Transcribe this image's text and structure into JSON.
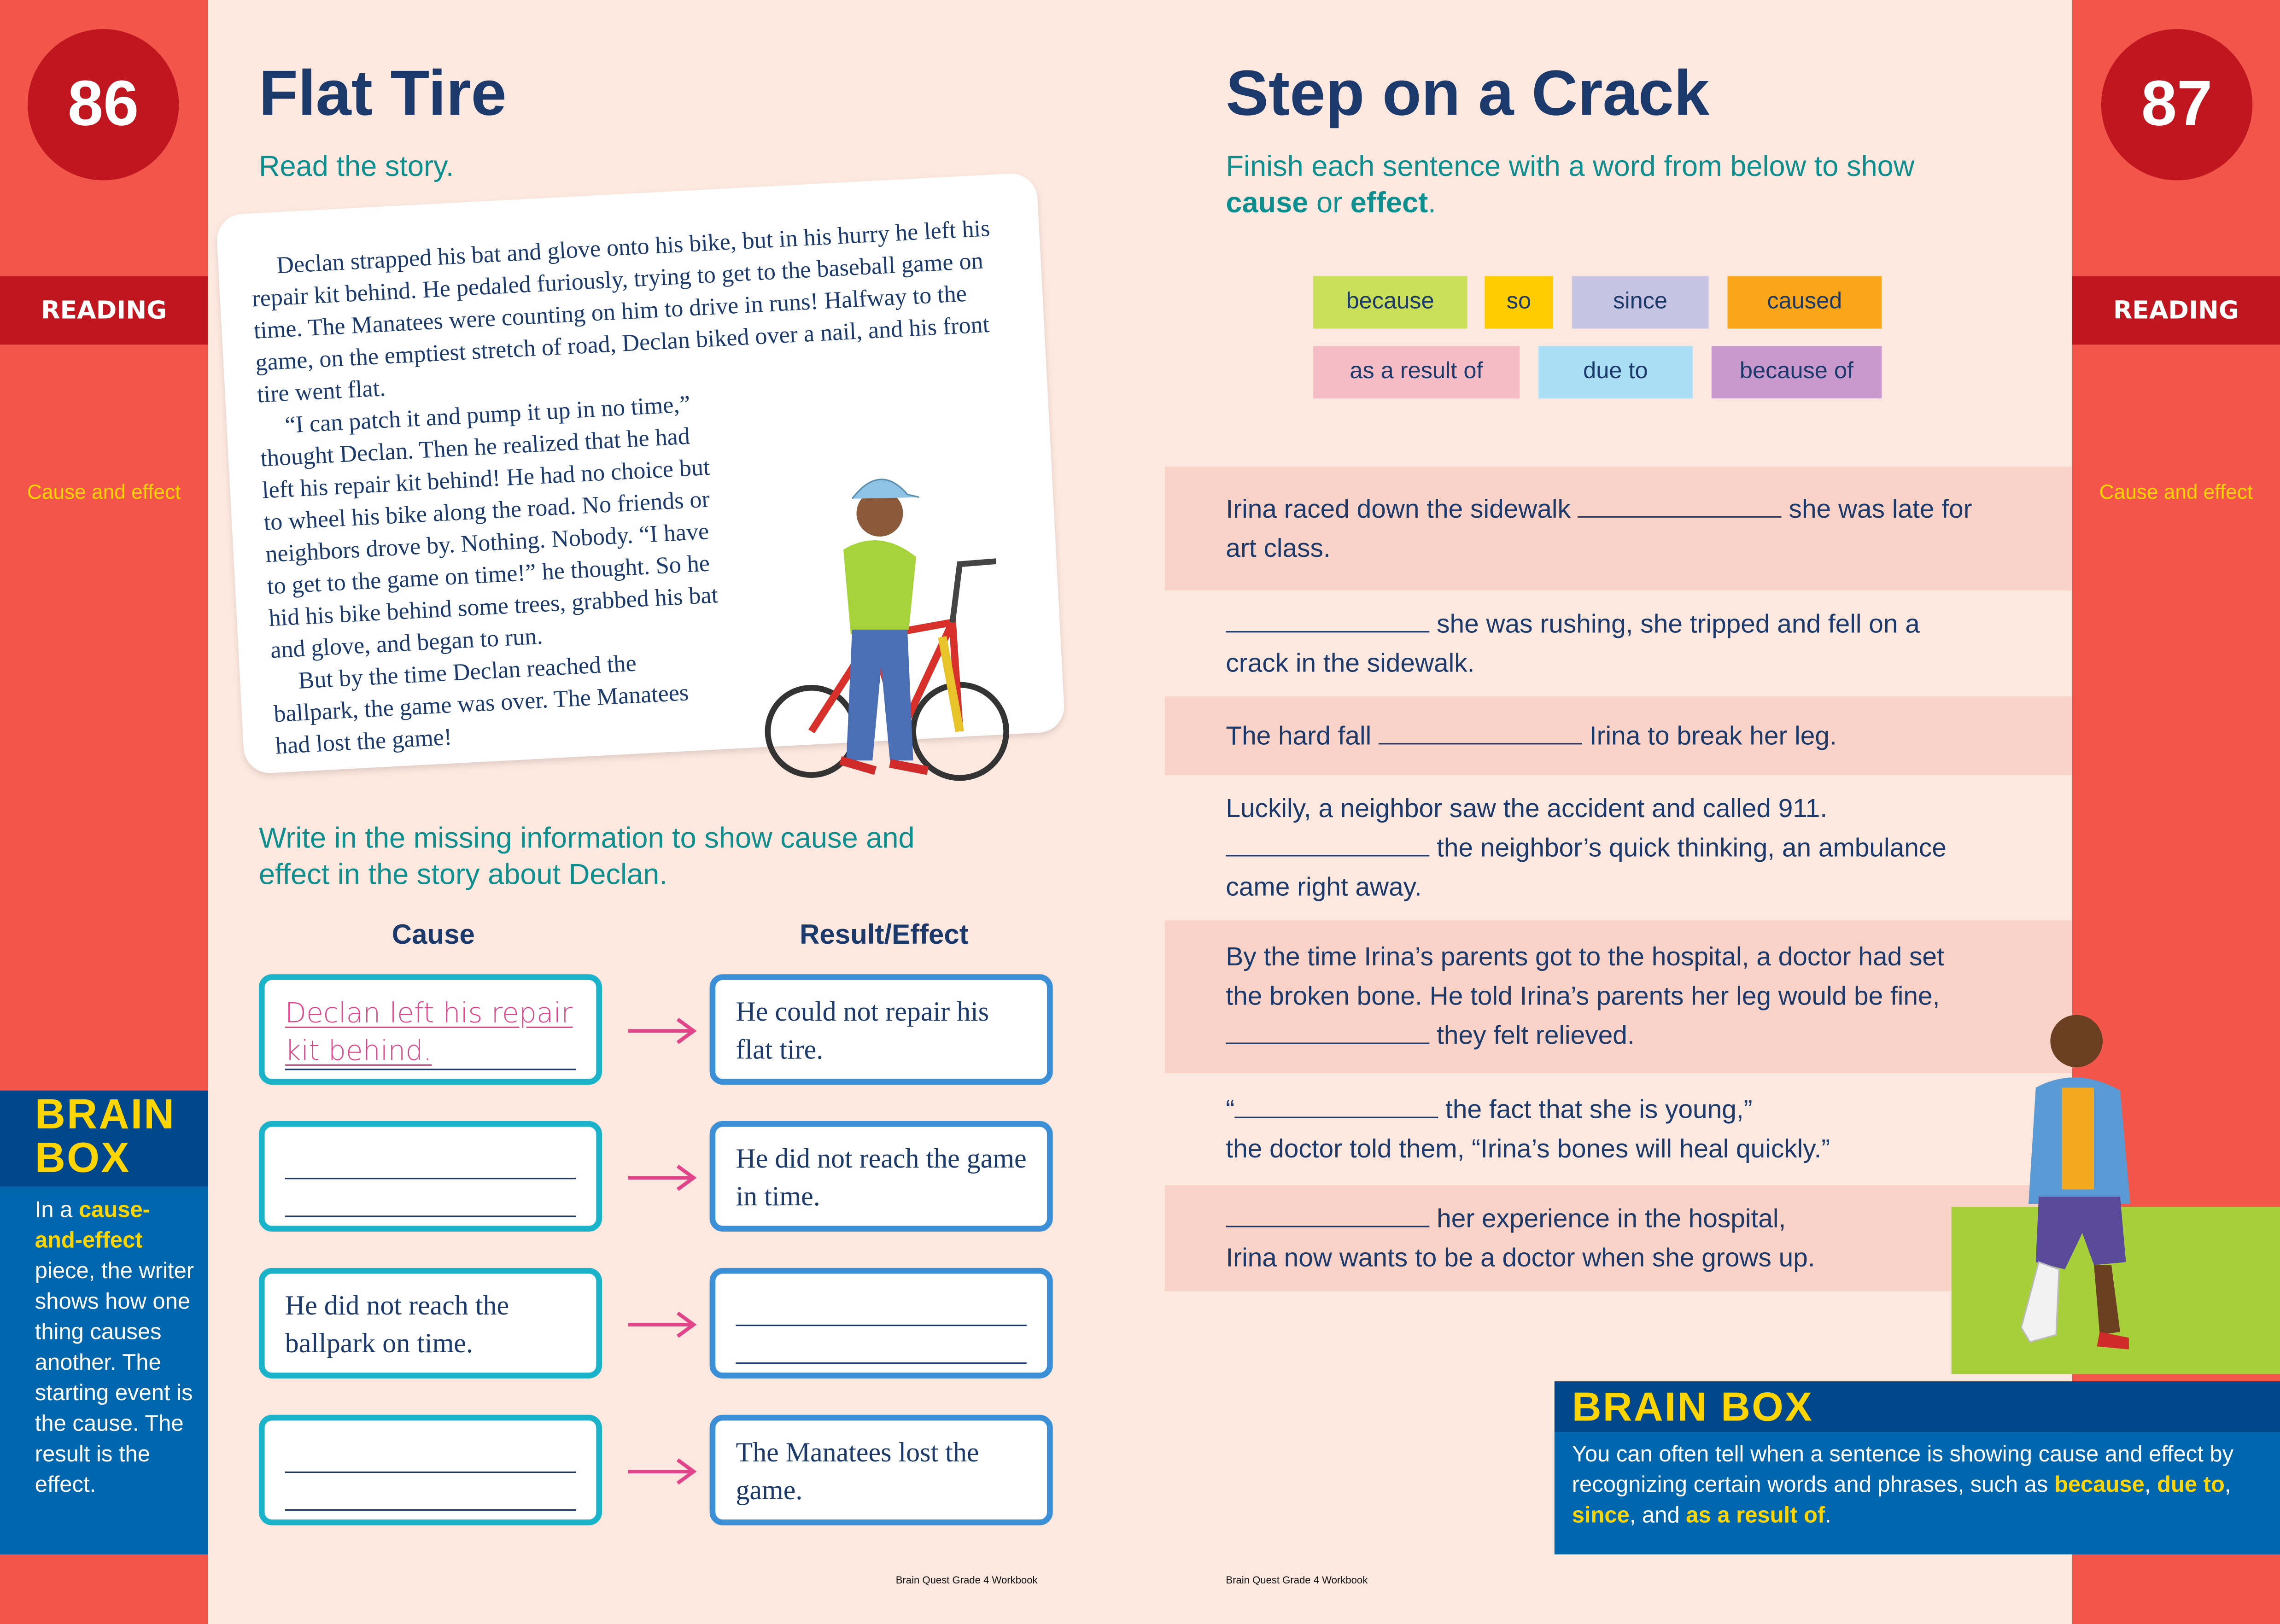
{
  "left_page": {
    "page_number": "86",
    "section": "READING",
    "topic": "Cause and effect",
    "title": "Flat Tire",
    "instruction": "Read the story.",
    "story": [
      "Declan strapped his bat and glove onto his bike, but in his hurry he left his repair kit behind. He pedaled furiously, trying to get to the baseball game on time. The Manatees were counting on him to drive in runs! Halfway to the game, on the emptiest stretch of road, Declan biked over a nail, and his front tire went flat.",
      "“I can patch it and pump it up in no time,” thought Declan. Then he realized that he had left his repair kit behind! He had no choice but to wheel his bike along the road. No friends or neighbors drove by. Nothing. Nobody. “I have to get to the game on time!” he thought. So he hid his bike behind some trees, grabbed his bat and glove, and began to run.",
      "But by the time Declan reached the ballpark, the game was over. The Manatees had lost the game!"
    ],
    "exercise_instruction": "Write in the missing information to show cause and effect in the story about Declan.",
    "cause_header": "Cause",
    "effect_header": "Result/Effect",
    "rows": [
      {
        "cause": "Declan left his repair kit behind.",
        "effect": "He could not repair his flat tire."
      },
      {
        "cause": "",
        "effect": "He did not reach the game in time."
      },
      {
        "cause": "He did not reach the ballpark on time.",
        "effect": ""
      },
      {
        "cause": "",
        "effect": "The Manatees lost the game."
      }
    ],
    "brain_box": {
      "title_1": "BRAIN",
      "title_2": "BOX",
      "pre": "In a ",
      "highlight": "cause-and-effect",
      "post": " piece, the writer shows how one thing causes another. The starting event is the cause. The result is the effect."
    },
    "footer": "Brain Quest Grade 4 Workbook"
  },
  "right_page": {
    "page_number": "87",
    "section": "READING",
    "topic": "Cause and effect",
    "title": "Step on a Crack",
    "instruction_pre": "Finish each sentence with a word from below to show ",
    "instruction_cause": "cause",
    "instruction_mid": " or ",
    "instruction_effect": "effect",
    "instruction_end": ".",
    "word_bank": [
      {
        "word": "because",
        "color": "#c9df5a"
      },
      {
        "word": "so",
        "color": "#ffcc00"
      },
      {
        "word": "since",
        "color": "#c6c3e3"
      },
      {
        "word": "caused",
        "color": "#f9a61a"
      },
      {
        "word": "as a result of",
        "color": "#f6bcc6"
      },
      {
        "word": "due to",
        "color": "#a9def5"
      },
      {
        "word": "because of",
        "color": "#c998cc"
      }
    ],
    "sentences": [
      {
        "l1a": "Irina raced down the sidewalk ",
        "l1b": " she was late for",
        "l2": "art class."
      },
      {
        "l1a": "",
        "l1b": " she was rushing, she tripped and fell on a",
        "l2": "crack in the sidewalk."
      },
      {
        "l1a": "The hard fall ",
        "l1b": " Irina to break her leg."
      },
      {
        "l0": "Luckily, a neighbor saw the accident and called 911.",
        "l1a": "",
        "l1b": " the neighbor’s quick thinking, an ambulance",
        "l2": "came right away."
      },
      {
        "l0": "By the time Irina’s parents got to the hospital, a doctor had set",
        "l0b": "the broken bone. He told Irina’s parents her leg would be fine,",
        "l1a": "",
        "l1b": " they felt relieved."
      },
      {
        "l1a": "“",
        "l1b": " the fact that she is young,”",
        "l2": "the doctor told them, “Irina’s bones will heal quickly.”"
      },
      {
        "l1a": "",
        "l1b": " her experience in the hospital,",
        "l2": "Irina now wants to be a doctor when she grows up."
      }
    ],
    "brain_box": {
      "title": "BRAIN BOX",
      "text": "You can often tell when a sentence is showing cause and effect by recognizing certain words and phrases, such as ",
      "w1": "because",
      "s1": ", ",
      "w2": "due to",
      "s2": ", ",
      "w3": "since",
      "s3": ", and ",
      "w4": "as a result of",
      "end": "."
    },
    "footer": "Brain Quest Grade 4 Workbook"
  },
  "colors": {
    "strip": "#f2564a",
    "dark_red": "#c0161f",
    "navy": "#1b3a6b",
    "teal": "#0e8f8f",
    "pink_row": "#f9d3c8",
    "brain_head": "#00468b",
    "brain_body": "#0066ad",
    "yellow": "#ffd500",
    "handwriting": "#e2448a"
  }
}
